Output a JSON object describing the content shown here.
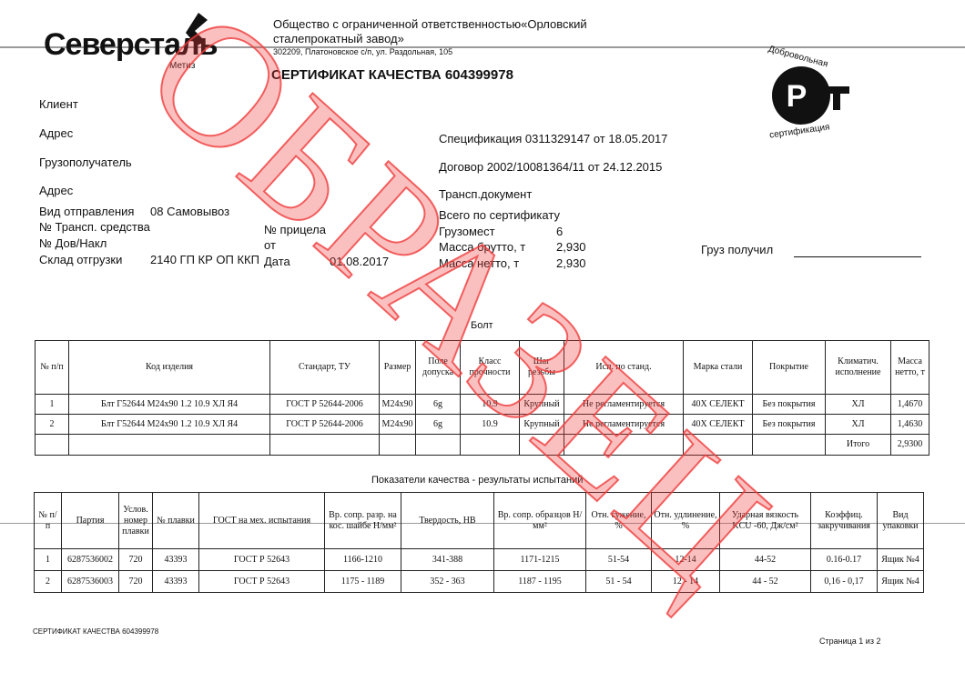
{
  "logo": {
    "brand": "Северсталь",
    "sub": "Метиз"
  },
  "company": {
    "line1": "Общество с ограниченной ответственностью«Орловский",
    "line2": "сталепрокатный завод»",
    "address": "302209, Платоновское с/п, ул. Раздольная, 105"
  },
  "title": "СЕРТИФИКАТ КАЧЕСТВА 604399978",
  "stamp": {
    "top": "Добровольная",
    "center": "РСТ",
    "bottom": "сертификация"
  },
  "fields": {
    "client": "Клиент",
    "address1": "Адрес",
    "consignee": "Грузополучатель",
    "address2": "Адрес",
    "ship_type_label": "Вид отправления",
    "ship_type": "08 Самовывоз",
    "vehicle_label": "№ Трансп. средства",
    "trailer_label": "№ прицела",
    "invoice_label": "№ Дов/Накл",
    "from_label": "от",
    "warehouse_label": "Склад отгрузки",
    "warehouse": "2140 ГП КР ОП ККП",
    "date_label": "Дата",
    "date": "01.08.2017",
    "spec": "Спецификация  0311329147 от 18.05.2017",
    "contract": "Договор  2002/10081364/11 от 24.12.2015",
    "transport_doc": "Трансп.документ",
    "total_cert": "Всего по сертификату",
    "places_label": "Грузомест",
    "places": "6",
    "gross_label": "Масса брутто, т",
    "gross": "2,930",
    "net_label": "Масса нетто, т",
    "net": "2,930",
    "received": "Груз получил"
  },
  "table1": {
    "caption": "Болт",
    "headers": [
      "№ п/п",
      "Код изделия",
      "Стандарт, ТУ",
      "Размер",
      "Поле допуска",
      "Класс прочности",
      "Шаг резьбы",
      "Исп. по станд.",
      "Марка стали",
      "Покрытие",
      "Климатич. исполнение",
      "Масса нетто, т"
    ],
    "rows": [
      [
        "1",
        "Блт Г52644 М24х90 1.2 10.9 ХЛ Я4",
        "ГОСТ Р 52644-2006",
        "М24х90",
        "6g",
        "10.9",
        "Крупный",
        "Не регламентируется",
        "40Х СЕЛЕКТ",
        "Без покрытия",
        "ХЛ",
        "1,4670"
      ],
      [
        "2",
        "Блт Г52644 М24х90 1.2 10.9 ХЛ Я4",
        "ГОСТ Р 52644-2006",
        "М24х90",
        "6g",
        "10.9",
        "Крупный",
        "Не регламентируется",
        "40Х СЕЛЕКТ",
        "Без покрытия",
        "ХЛ",
        "1,4630"
      ]
    ],
    "total_label": "Итого",
    "total": "2,9300"
  },
  "table2": {
    "caption": "Показатели качества - результаты испытаний",
    "headers": [
      "№ п/п",
      "Партия",
      "Услов. номер плавки",
      "№ плавки",
      "ГОСТ на мех. испытания",
      "Вр. сопр. разр. на кос. шайбе Н/мм²",
      "Твердость, НВ",
      "Вр. сопр. образцов Н/мм²",
      "Отн. сужение, %",
      "Отн. удлинение, %",
      "Ударная вязкость KCU -60, Дж/см²",
      "Коэффиц. закручивания",
      "Вид упаковки"
    ],
    "rows": [
      [
        "1",
        "6287536002",
        "720",
        "43393",
        "ГОСТ Р 52643",
        "1166-1210",
        "341-388",
        "1171-1215",
        "51-54",
        "12-14",
        "44-52",
        "0.16-0.17",
        "Ящик №4"
      ],
      [
        "2",
        "6287536003",
        "720",
        "43393",
        "ГОСТ Р 52643",
        "1175 - 1189",
        "352 - 363",
        "1187 - 1195",
        "51 - 54",
        "12 - 14",
        "44 - 52",
        "0,16 - 0,17",
        "Ящик №4"
      ]
    ]
  },
  "footer": {
    "left": "СЕРТИФИКАТ КАЧЕСТВА 604399978",
    "right": "Страница 1 из 2"
  },
  "watermark": "ОБРАЗЕЦ",
  "colors": {
    "watermark": "#f03c3c"
  }
}
